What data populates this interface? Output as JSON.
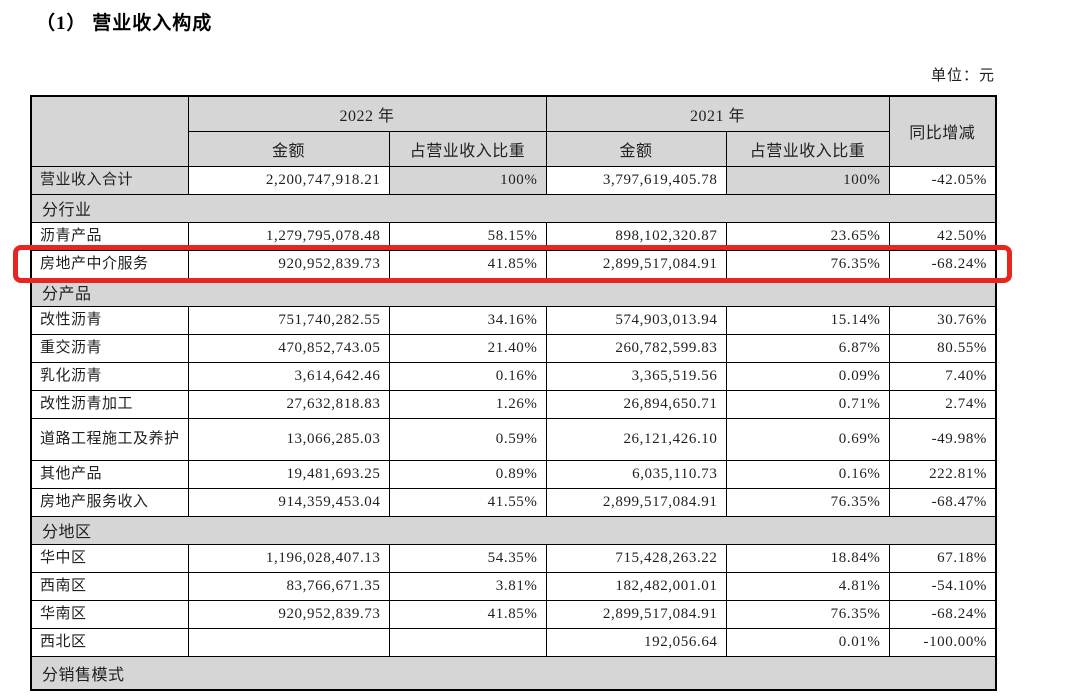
{
  "page": {
    "title": "（1） 营业收入构成",
    "unit_label": "单位：元"
  },
  "table": {
    "header": {
      "year_2022": "2022 年",
      "year_2021": "2021 年",
      "yoy": "同比增减",
      "amount": "金额",
      "ratio": "占营业收入比重"
    },
    "highlight_color": "#e8251f",
    "shade_color": "#d6d6d6",
    "rows": [
      {
        "type": "data",
        "label": "营业收入合计",
        "amount_2022": "2,200,747,918.21",
        "ratio_2022": "100%",
        "amount_2021": "3,797,619,405.78",
        "ratio_2021": "100%",
        "yoy": "-42.05%",
        "shaded": true
      },
      {
        "type": "section",
        "label": "分行业"
      },
      {
        "type": "data",
        "label": "沥青产品",
        "amount_2022": "1,279,795,078.48",
        "ratio_2022": "58.15%",
        "amount_2021": "898,102,320.87",
        "ratio_2021": "23.65%",
        "yoy": "42.50%"
      },
      {
        "type": "data",
        "label": "房地产中介服务",
        "amount_2022": "920,952,839.73",
        "ratio_2022": "41.85%",
        "amount_2021": "2,899,517,084.91",
        "ratio_2021": "76.35%",
        "yoy": "-68.24%",
        "highlighted": true
      },
      {
        "type": "section",
        "label": "分产品"
      },
      {
        "type": "data",
        "label": "改性沥青",
        "amount_2022": "751,740,282.55",
        "ratio_2022": "34.16%",
        "amount_2021": "574,903,013.94",
        "ratio_2021": "15.14%",
        "yoy": "30.76%"
      },
      {
        "type": "data",
        "label": "重交沥青",
        "amount_2022": "470,852,743.05",
        "ratio_2022": "21.40%",
        "amount_2021": "260,782,599.83",
        "ratio_2021": "6.87%",
        "yoy": "80.55%"
      },
      {
        "type": "data",
        "label": "乳化沥青",
        "amount_2022": "3,614,642.46",
        "ratio_2022": "0.16%",
        "amount_2021": "3,365,519.56",
        "ratio_2021": "0.09%",
        "yoy": "7.40%"
      },
      {
        "type": "data",
        "label": "改性沥青加工",
        "amount_2022": "27,632,818.83",
        "ratio_2022": "1.26%",
        "amount_2021": "26,894,650.71",
        "ratio_2021": "0.71%",
        "yoy": "2.74%"
      },
      {
        "type": "data",
        "label": "道路工程施工及养护",
        "amount_2022": "13,066,285.03",
        "ratio_2022": "0.59%",
        "amount_2021": "26,121,426.10",
        "ratio_2021": "0.69%",
        "yoy": "-49.98%",
        "tall": true
      },
      {
        "type": "data",
        "label": "其他产品",
        "amount_2022": "19,481,693.25",
        "ratio_2022": "0.89%",
        "amount_2021": "6,035,110.73",
        "ratio_2021": "0.16%",
        "yoy": "222.81%"
      },
      {
        "type": "data",
        "label": "房地产服务收入",
        "amount_2022": "914,359,453.04",
        "ratio_2022": "41.55%",
        "amount_2021": "2,899,517,084.91",
        "ratio_2021": "76.35%",
        "yoy": "-68.47%"
      },
      {
        "type": "section",
        "label": "分地区"
      },
      {
        "type": "data",
        "label": "华中区",
        "amount_2022": "1,196,028,407.13",
        "ratio_2022": "54.35%",
        "amount_2021": "715,428,263.22",
        "ratio_2021": "18.84%",
        "yoy": "67.18%"
      },
      {
        "type": "data",
        "label": "西南区",
        "amount_2022": "83,766,671.35",
        "ratio_2022": "3.81%",
        "amount_2021": "182,482,001.01",
        "ratio_2021": "4.81%",
        "yoy": "-54.10%"
      },
      {
        "type": "data",
        "label": "华南区",
        "amount_2022": "920,952,839.73",
        "ratio_2022": "41.85%",
        "amount_2021": "2,899,517,084.91",
        "ratio_2021": "76.35%",
        "yoy": "-68.24%"
      },
      {
        "type": "data",
        "label": "西北区",
        "amount_2022": "",
        "ratio_2022": "",
        "amount_2021": "192,056.64",
        "ratio_2021": "0.01%",
        "yoy": "-100.00%"
      },
      {
        "type": "section",
        "label": "分销售模式"
      }
    ]
  }
}
